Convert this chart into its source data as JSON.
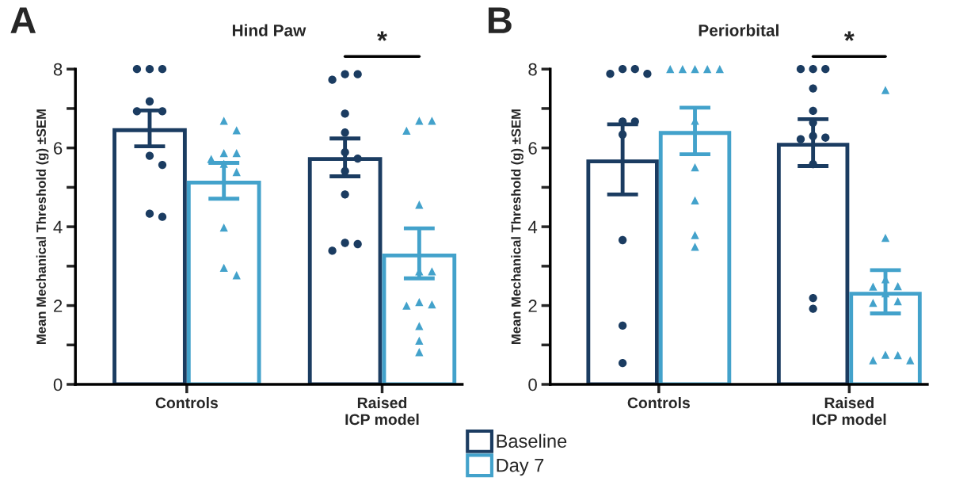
{
  "chart_data": [
    {
      "type": "bar",
      "title": "Hind Paw",
      "ylabel": "Mean Mechanical Threshold (g) ±SEM",
      "categories": [
        "Controls",
        "Raised\nICP model"
      ],
      "series": [
        {
          "name": "Baseline",
          "color": "#1b3c61",
          "values": [
            6.45,
            5.72
          ],
          "errors": [
            [
              6.04,
              6.95
            ],
            [
              5.28,
              6.24
            ]
          ]
        },
        {
          "name": "Day 7",
          "color": "#43a2cb",
          "values": [
            5.12,
            3.27
          ],
          "errors": [
            [
              4.71,
              5.62
            ],
            [
              2.69,
              3.96
            ]
          ]
        },
        {
          "type": "scatter",
          "color": "#1b3c61",
          "marker": "circle",
          "x": [
            "Controls",
            "Controls",
            "Controls",
            "Controls",
            "Controls",
            "Controls",
            "Controls",
            "Controls",
            "Controls",
            "Controls",
            "Raised\nICP model",
            "Raised\nICP model",
            "Raised\nICP model",
            "Raised\nICP model",
            "Raised\nICP model",
            "Raised\nICP model",
            "Raised\nICP model",
            "Raised\nICP model",
            "Raised\nICP model",
            "Raised\nICP model",
            "Raised\nICP model",
            "Raised\nICP model"
          ],
          "values": [
            8,
            8,
            8,
            7.18,
            6.93,
            6.93,
            5.8,
            5.57,
            4.33,
            4.25,
            7.87,
            7.87,
            7.73,
            6.87,
            6.39,
            5.89,
            5.73,
            5.41,
            4.82,
            3.59,
            3.56,
            3.39
          ]
        },
        {
          "type": "scatter",
          "color": "#43a2cb",
          "marker": "triangle",
          "x": [
            "Controls",
            "Controls",
            "Controls",
            "Controls",
            "Controls",
            "Controls",
            "Controls",
            "Controls",
            "Controls",
            "Controls",
            "Raised\nICP model",
            "Raised\nICP model",
            "Raised\nICP model",
            "Raised\nICP model",
            "Raised\nICP model",
            "Raised\nICP model",
            "Raised\nICP model",
            "Raised\nICP model",
            "Raised\nICP model",
            "Raised\nICP model",
            "Raised\nICP model",
            "Raised\nICP model"
          ],
          "values": [
            6.69,
            6.45,
            5.87,
            5.87,
            5.72,
            5.6,
            5.39,
            3.98,
            2.96,
            2.77,
            6.69,
            6.69,
            6.44,
            4.56,
            2.87,
            2.87,
            2.09,
            2.03,
            2.0,
            1.48,
            1.11,
            0.82
          ]
        }
      ],
      "ylim": [
        0,
        8
      ],
      "yticks": [
        0,
        {
          "value": 1,
          "label": null
        },
        2,
        {
          "value": 3,
          "label": null
        },
        4,
        {
          "value": 5,
          "label": null
        },
        6,
        {
          "value": 7,
          "label": null
        },
        8
      ],
      "grid": false,
      "legend": "bottom",
      "annotations": [
        "A",
        "*"
      ]
    },
    {
      "type": "bar",
      "title": "Periorbital",
      "ylabel": "Mean Mechanical Threshold (g) ±SEM",
      "categories": [
        "Controls",
        "Raised\nICP model"
      ],
      "series": [
        {
          "color": "#1b3c61",
          "values": [
            5.66,
            6.08
          ],
          "errors": [
            [
              4.82,
              6.6
            ],
            [
              5.54,
              6.73
            ]
          ]
        },
        {
          "color": "#43a2cb",
          "values": [
            6.38,
            2.3
          ],
          "errors": [
            [
              5.84,
              7.02
            ],
            [
              1.8,
              2.9
            ]
          ]
        },
        {
          "type": "scatter",
          "color": "#1b3c61",
          "marker": "circle",
          "x": [
            "Controls",
            "Controls",
            "Controls",
            "Controls",
            "Controls",
            "Controls",
            "Controls",
            "Controls",
            "Controls",
            "Controls",
            "Raised\nICP model",
            "Raised\nICP model",
            "Raised\nICP model",
            "Raised\nICP model",
            "Raised\nICP model",
            "Raised\nICP model",
            "Raised\nICP model",
            "Raised\nICP model",
            "Raised\nICP model",
            "Raised\nICP model",
            "Raised\nICP model",
            "Raised\nICP model"
          ],
          "values": [
            8,
            8,
            7.88,
            7.88,
            6.67,
            6.67,
            6.34,
            3.66,
            1.49,
            0.54,
            8,
            8,
            8,
            7.51,
            6.94,
            6.64,
            6.3,
            6.26,
            6.22,
            5.59,
            2.19,
            1.92
          ]
        },
        {
          "type": "scatter",
          "color": "#43a2cb",
          "marker": "triangle",
          "x": [
            "Controls",
            "Controls",
            "Controls",
            "Controls",
            "Controls",
            "Controls",
            "Controls",
            "Controls",
            "Controls",
            "Controls",
            "Raised\nICP model",
            "Raised\nICP model",
            "Raised\nICP model",
            "Raised\nICP model",
            "Raised\nICP model",
            "Raised\nICP model",
            "Raised\nICP model",
            "Raised\nICP model",
            "Raised\nICP model",
            "Raised\nICP model",
            "Raised\nICP model",
            "Raised\nICP model"
          ],
          "values": [
            8,
            8,
            8,
            8,
            8,
            6.69,
            5.51,
            4.67,
            3.79,
            3.49,
            7.47,
            3.72,
            2.67,
            2.49,
            2.48,
            2.31,
            2.11,
            2.07,
            0.75,
            0.74,
            0.61,
            0.61
          ]
        }
      ],
      "ylim": [
        0,
        8
      ],
      "yticks": [
        0,
        {
          "value": 1,
          "label": null
        },
        2,
        {
          "value": 3,
          "label": null
        },
        4,
        {
          "value": 5,
          "label": null
        },
        6,
        {
          "value": 7,
          "label": null
        },
        8
      ],
      "grid": false,
      "annotations": [
        "B",
        "*"
      ]
    }
  ]
}
